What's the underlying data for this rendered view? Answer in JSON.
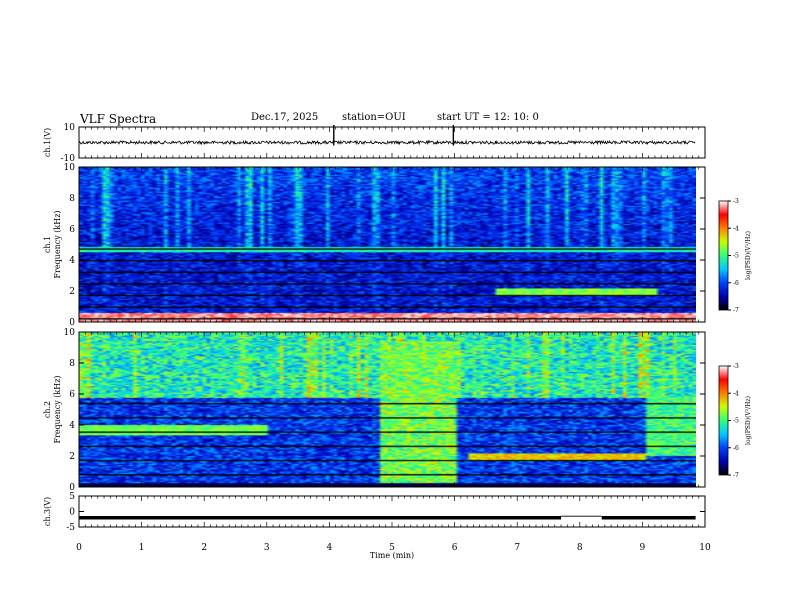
{
  "header": {
    "title": "VLF Spectra",
    "date": "Dec.17, 2025",
    "station": "station=OUI",
    "start": "start  UT =   12: 10: 0"
  },
  "chart_data": [
    {
      "type": "line",
      "name": "ch1-waveform",
      "ylabel": "ch.1(V)",
      "ylim": [
        -10,
        10
      ],
      "y_ticks": [
        "10",
        "-10"
      ],
      "baseline_value": 0,
      "noise_amplitude_v": 1,
      "spikes_min": [
        4.07,
        5.98
      ]
    },
    {
      "type": "heatmap",
      "name": "ch1-spectrogram",
      "ylabel": "ch.1\nFrequency (kHz)",
      "ylim": [
        0,
        10
      ],
      "y_ticks": [
        "0",
        "2",
        "4",
        "6",
        "8",
        "10"
      ],
      "colorbar": {
        "ticks": [
          "-3",
          "-4",
          "-5",
          "-6",
          "-7"
        ],
        "label": "log(PSD)(V²/Hz)",
        "range": [
          -7,
          -3
        ]
      },
      "features": [
        {
          "label": "background level",
          "value": -6.4
        },
        {
          "label": "0-0.6 kHz band",
          "value": -3.2
        },
        {
          "label": "2.0 kHz band (6.6-9.2 min)",
          "value": -5.0
        },
        {
          "label": "4.7 kHz tone",
          "value": -5.2
        }
      ]
    },
    {
      "type": "heatmap",
      "name": "ch2-spectrogram",
      "ylabel": "ch.2\nFrequency (kHz)",
      "ylim": [
        0,
        10
      ],
      "y_ticks": [
        "0",
        "2",
        "4",
        "6",
        "8",
        "10"
      ],
      "colorbar": {
        "ticks": [
          "-3",
          "-4",
          "-5",
          "-6",
          "-7"
        ],
        "label": "log(PSD)(V²/Hz)",
        "range": [
          -7,
          -3
        ]
      },
      "features": [
        {
          "label": "upper band 6-10 kHz",
          "value": -4.8
        },
        {
          "label": "3.6 kHz band (0-3 min)",
          "value": -5.0
        },
        {
          "label": "broadband 4.8-6.0 min",
          "value": -4.6
        },
        {
          "label": "2.0 kHz band (6.2-9.0 min)",
          "value": -4.5
        }
      ]
    },
    {
      "type": "line",
      "name": "ch3-trace",
      "ylabel": "ch.3(V)",
      "ylim": [
        -5,
        5
      ],
      "y_ticks": [
        "5",
        "0",
        "-5"
      ],
      "baseline_value": -2,
      "gap_min": [
        7.7,
        8.35
      ]
    }
  ],
  "xaxis": {
    "label": "Time  (min)",
    "ticks": [
      "0",
      "1",
      "2",
      "3",
      "4",
      "5",
      "6",
      "7",
      "8",
      "9",
      "10"
    ],
    "range": [
      0,
      10
    ],
    "data_end_min": 9.85
  },
  "colors": {
    "colormap": [
      "#000000",
      "#0000b0",
      "#0040ff",
      "#00c8ff",
      "#30ff80",
      "#c8ff00",
      "#ff8000",
      "#ff0000",
      "#ffffff"
    ]
  }
}
